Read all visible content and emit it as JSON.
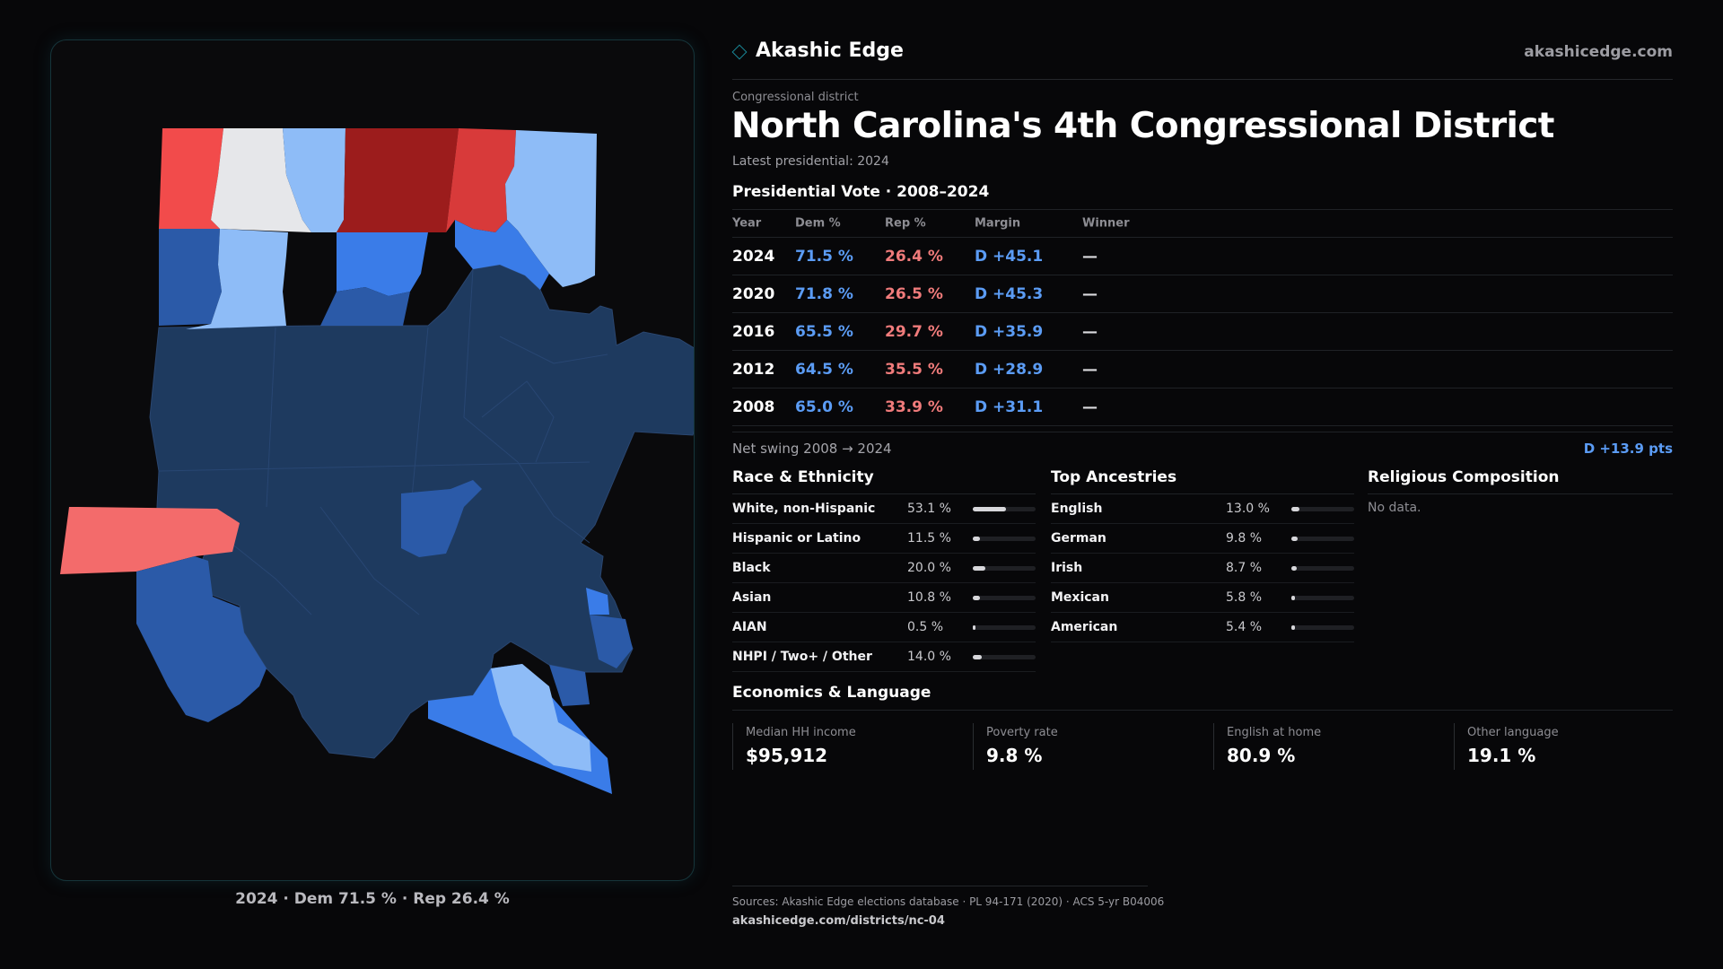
{
  "header": {
    "brand": "Akashic Edge",
    "site": "akashicedge.com"
  },
  "kicker": "Congressional district",
  "title": "North Carolina's 4th Congressional District",
  "latest": "Latest presidential: 2024",
  "presidential": {
    "title": "Presidential Vote · 2008–2024",
    "columns": [
      "Year",
      "Dem %",
      "Rep %",
      "Margin",
      "Winner"
    ],
    "rows": [
      {
        "year": "2024",
        "dem": "71.5 %",
        "rep": "26.4 %",
        "margin": "D +45.1",
        "winner": "—"
      },
      {
        "year": "2020",
        "dem": "71.8 %",
        "rep": "26.5 %",
        "margin": "D +45.3",
        "winner": "—"
      },
      {
        "year": "2016",
        "dem": "65.5 %",
        "rep": "29.7 %",
        "margin": "D +35.9",
        "winner": "—"
      },
      {
        "year": "2012",
        "dem": "64.5 %",
        "rep": "35.5 %",
        "margin": "D +28.9",
        "winner": "—"
      },
      {
        "year": "2008",
        "dem": "65.0 %",
        "rep": "33.9 %",
        "margin": "D +31.1",
        "winner": "—"
      }
    ]
  },
  "swing": {
    "label": "Net swing 2008 → 2024",
    "value": "D +13.9 pts"
  },
  "race": {
    "title": "Race & Ethnicity",
    "rows": [
      {
        "label": "White, non-Hispanic",
        "value": "53.1 %",
        "pct": 53.1
      },
      {
        "label": "Hispanic or Latino",
        "value": "11.5 %",
        "pct": 11.5
      },
      {
        "label": "Black",
        "value": "20.0 %",
        "pct": 20.0
      },
      {
        "label": "Asian",
        "value": "10.8 %",
        "pct": 10.8
      },
      {
        "label": "AIAN",
        "value": "0.5 %",
        "pct": 0.5
      },
      {
        "label": "NHPI / Two+ / Other",
        "value": "14.0 %",
        "pct": 14.0
      }
    ]
  },
  "ancestry": {
    "title": "Top Ancestries",
    "rows": [
      {
        "label": "English",
        "value": "13.0 %",
        "pct": 13.0
      },
      {
        "label": "German",
        "value": "9.8 %",
        "pct": 9.8
      },
      {
        "label": "Irish",
        "value": "8.7 %",
        "pct": 8.7
      },
      {
        "label": "Mexican",
        "value": "5.8 %",
        "pct": 5.8
      },
      {
        "label": "American",
        "value": "5.4 %",
        "pct": 5.4
      }
    ]
  },
  "religion": {
    "title": "Religious Composition",
    "empty": "No data."
  },
  "economics": {
    "title": "Economics & Language",
    "cells": [
      {
        "label": "Median HH income",
        "value": "$95,912"
      },
      {
        "label": "Poverty rate",
        "value": "9.8 %"
      },
      {
        "label": "English at home",
        "value": "80.9 %"
      },
      {
        "label": "Other language",
        "value": "19.1 %"
      }
    ]
  },
  "map": {
    "caption": "2024 · Dem 71.5 % · Rep 26.4 %",
    "colors": {
      "safe_dem": "#1e3a5f",
      "likely_dem": "#2b5aa8",
      "lean_dem": "#3a7ce8",
      "tilt_dem": "#8ebcf7",
      "tossup": "#e6e7ea",
      "lean_rep": "#f36b6b",
      "likely_rep": "#d83a3a",
      "safe_rep": "#9c1c1c"
    }
  },
  "sources": {
    "line1": "Sources: Akashic Edge elections database · PL 94-171 (2020) · ACS 5-yr B04006",
    "line2": "akashicedge.com/districts/nc-04"
  }
}
